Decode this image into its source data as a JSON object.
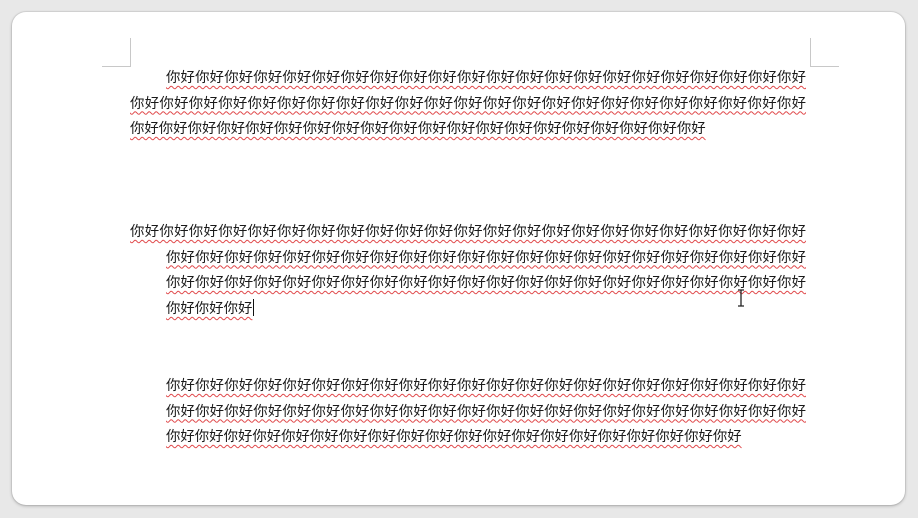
{
  "document": {
    "paragraphs": [
      {
        "id": "para-1",
        "indent_style": "first-line",
        "text": "你好你好你好你好你好你好你好你好你好你好你好你好你好你好你好你好你好你好你好你好你好你好你好你好你好你好你好你好你好你好你好你好你好你好你好你好你好你好你好你好你好你好你好你好你好你好你好你好你好你好你好你好你好你好你好你好你好你好你好你好你好你好你好你好你好"
      },
      {
        "id": "para-2",
        "indent_style": "hanging",
        "text": "你好你好你好你好你好你好你好你好你好你好你好你好你好你好你好你好你好你好你好你好你好你好你好你好你好你好你好你好你好你好你好你好你好你好你好你好你好你好你好你好你好你好你好你好你好你好你好你好你好你好你好你好你好你好你好你好你好你好你好你好你好你好你好你好你好你好你好你好你好你好"
      },
      {
        "id": "para-3",
        "indent_style": "left-indent",
        "text": "你好你好你好你好你好你好你好你好你好你好你好你好你好你好你好你好你好你好你好你好你好你好你好你好你好你好你好你好你好你好你好你好你好你好你好你好你好你好你好你好你好你好你好你好你好你好你好你好你好你好你好你好你好你好你好你好你好你好你好你好你好你好你好你好"
      }
    ],
    "colors": {
      "spellcheck_underline": "#e0484a",
      "text": "#1a1a1a",
      "page": "#ffffff"
    },
    "cursor": "i-beam-cursor-icon"
  }
}
